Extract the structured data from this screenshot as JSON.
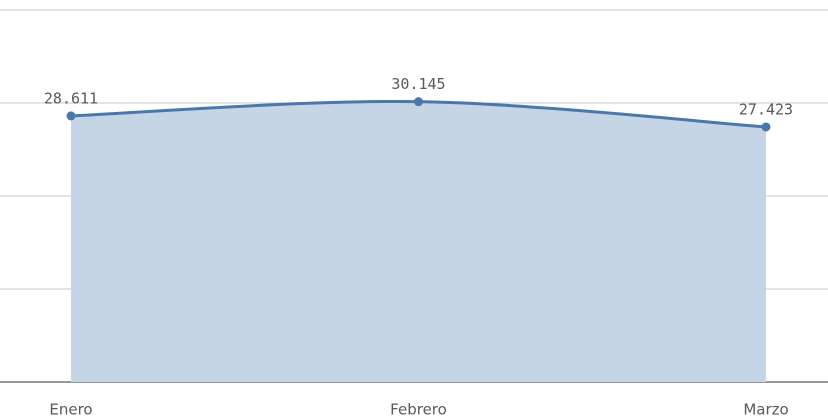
{
  "chart_data": {
    "type": "area",
    "categories": [
      "Enero",
      "Febrero",
      "Marzo"
    ],
    "series": [
      {
        "values": [
          28611,
          30145,
          27423
        ],
        "value_labels": [
          "28.611",
          "30.145",
          "27.423"
        ],
        "color": "#4a78ab",
        "fill": "#c5d5e5"
      }
    ],
    "ylim": [
      0,
      40000
    ],
    "yticks": [
      0,
      10000,
      20000,
      30000,
      40000
    ],
    "grid": true
  }
}
